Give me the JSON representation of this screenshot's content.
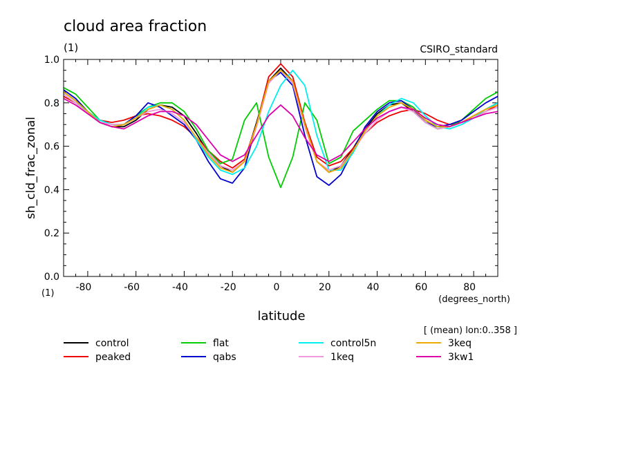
{
  "chart_data": {
    "type": "line",
    "title": "cloud area fraction",
    "y_units": "(1)",
    "x_units_note": "(1)",
    "source_label": "CSIRO_standard",
    "ylabel": "sh_cld_frac_zonal",
    "xlabel": "latitude",
    "x_units": "(degrees_north)",
    "averaging_note": "[ (mean) lon:0..358 ]",
    "xlim": [
      -90,
      90
    ],
    "ylim": [
      0,
      1
    ],
    "x_ticks": [
      -80,
      -60,
      -40,
      -20,
      0,
      20,
      40,
      60,
      80
    ],
    "x_tick_labels": [
      "-80",
      "-60",
      "-40",
      "-20",
      "0",
      "20",
      "40",
      "60",
      "80"
    ],
    "y_ticks": [
      0,
      0.2,
      0.4,
      0.6,
      0.8,
      1.0
    ],
    "y_tick_labels": [
      "0.0",
      "0.2",
      "0.4",
      "0.6",
      "0.8",
      "1.0"
    ],
    "grid": false,
    "legend_position": "below",
    "x": [
      -90,
      -85,
      -80,
      -75,
      -70,
      -65,
      -60,
      -55,
      -50,
      -45,
      -40,
      -35,
      -30,
      -25,
      -20,
      -15,
      -10,
      -5,
      0,
      5,
      10,
      15,
      20,
      25,
      30,
      35,
      40,
      45,
      50,
      55,
      60,
      65,
      70,
      75,
      80,
      85,
      90
    ],
    "series": [
      {
        "name": "control",
        "color": "#000000",
        "values": [
          0.85,
          0.81,
          0.76,
          0.71,
          0.69,
          0.69,
          0.72,
          0.77,
          0.79,
          0.78,
          0.74,
          0.66,
          0.57,
          0.51,
          0.48,
          0.53,
          0.71,
          0.9,
          0.96,
          0.9,
          0.7,
          0.53,
          0.48,
          0.51,
          0.59,
          0.68,
          0.75,
          0.79,
          0.8,
          0.76,
          0.71,
          0.68,
          0.69,
          0.71,
          0.74,
          0.77,
          0.8
        ]
      },
      {
        "name": "peaked",
        "color": "#ee0000",
        "values": [
          0.83,
          0.8,
          0.76,
          0.72,
          0.71,
          0.72,
          0.74,
          0.75,
          0.74,
          0.72,
          0.69,
          0.64,
          0.58,
          0.53,
          0.5,
          0.54,
          0.7,
          0.92,
          0.98,
          0.92,
          0.71,
          0.55,
          0.51,
          0.53,
          0.59,
          0.66,
          0.71,
          0.74,
          0.76,
          0.77,
          0.75,
          0.72,
          0.7,
          0.71,
          0.73,
          0.76,
          0.79
        ]
      },
      {
        "name": "flat",
        "color": "#00cc00",
        "values": [
          0.87,
          0.84,
          0.78,
          0.72,
          0.7,
          0.7,
          0.74,
          0.78,
          0.8,
          0.8,
          0.76,
          0.68,
          0.58,
          0.52,
          0.54,
          0.72,
          0.8,
          0.55,
          0.41,
          0.55,
          0.8,
          0.72,
          0.52,
          0.55,
          0.67,
          0.72,
          0.77,
          0.81,
          0.81,
          0.78,
          0.72,
          0.68,
          0.69,
          0.72,
          0.77,
          0.82,
          0.85
        ]
      },
      {
        "name": "qabs",
        "color": "#0000cc",
        "values": [
          0.86,
          0.82,
          0.76,
          0.71,
          0.69,
          0.7,
          0.74,
          0.8,
          0.78,
          0.74,
          0.7,
          0.63,
          0.53,
          0.45,
          0.43,
          0.5,
          0.7,
          0.9,
          0.94,
          0.88,
          0.65,
          0.46,
          0.42,
          0.47,
          0.58,
          0.69,
          0.76,
          0.8,
          0.81,
          0.77,
          0.71,
          0.69,
          0.7,
          0.72,
          0.76,
          0.8,
          0.83
        ]
      },
      {
        "name": "control5n",
        "color": "#00eeee",
        "values": [
          0.84,
          0.8,
          0.76,
          0.72,
          0.7,
          0.7,
          0.73,
          0.78,
          0.79,
          0.77,
          0.72,
          0.63,
          0.55,
          0.49,
          0.47,
          0.5,
          0.6,
          0.76,
          0.88,
          0.95,
          0.88,
          0.65,
          0.49,
          0.49,
          0.57,
          0.67,
          0.74,
          0.79,
          0.82,
          0.8,
          0.74,
          0.69,
          0.68,
          0.7,
          0.73,
          0.77,
          0.8
        ]
      },
      {
        "name": "1keq",
        "color": "#ee99dd",
        "values": [
          0.84,
          0.8,
          0.75,
          0.71,
          0.7,
          0.7,
          0.73,
          0.76,
          0.77,
          0.75,
          0.71,
          0.64,
          0.57,
          0.51,
          0.49,
          0.53,
          0.69,
          0.89,
          0.95,
          0.89,
          0.69,
          0.53,
          0.49,
          0.51,
          0.58,
          0.66,
          0.72,
          0.76,
          0.78,
          0.76,
          0.71,
          0.68,
          0.69,
          0.71,
          0.73,
          0.76,
          0.78
        ]
      },
      {
        "name": "3keq",
        "color": "#eeaa00",
        "values": [
          0.85,
          0.81,
          0.76,
          0.71,
          0.69,
          0.7,
          0.73,
          0.77,
          0.79,
          0.77,
          0.72,
          0.64,
          0.56,
          0.5,
          0.48,
          0.53,
          0.7,
          0.9,
          0.95,
          0.9,
          0.7,
          0.53,
          0.48,
          0.5,
          0.58,
          0.67,
          0.74,
          0.78,
          0.8,
          0.77,
          0.72,
          0.69,
          0.69,
          0.71,
          0.74,
          0.77,
          0.79
        ]
      },
      {
        "name": "3kw1",
        "color": "#dd00aa",
        "values": [
          0.82,
          0.79,
          0.75,
          0.71,
          0.69,
          0.68,
          0.71,
          0.74,
          0.76,
          0.76,
          0.74,
          0.7,
          0.63,
          0.56,
          0.53,
          0.56,
          0.65,
          0.74,
          0.79,
          0.74,
          0.64,
          0.56,
          0.53,
          0.56,
          0.62,
          0.68,
          0.73,
          0.76,
          0.78,
          0.77,
          0.73,
          0.7,
          0.69,
          0.71,
          0.73,
          0.75,
          0.76
        ]
      }
    ]
  }
}
